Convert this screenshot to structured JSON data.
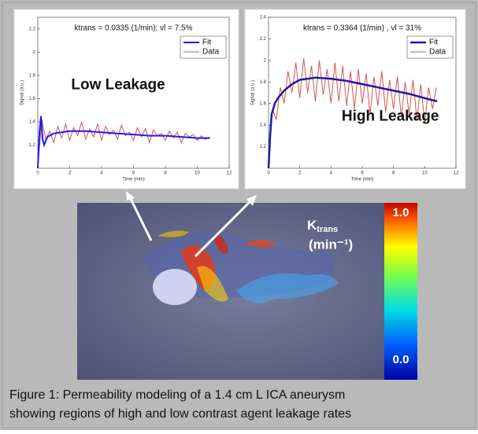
{
  "chart_data": [
    {
      "type": "line",
      "title": "ktrans = 0.0335 (1/min); vl = 7.5%",
      "annotation": "Low Leakage",
      "x_label": "Time (min)",
      "y_label": "Signal (a.u.)",
      "xlim": [
        0,
        12
      ],
      "xticks": [
        0,
        2,
        4,
        6,
        8,
        10,
        12
      ],
      "ylim": [
        1,
        2.3
      ],
      "yticks": [
        1.2,
        1.4,
        1.6,
        1.8,
        2,
        2.2
      ],
      "legend": "upper right",
      "series": [
        {
          "name": "Fit",
          "color": "#1a1aff",
          "width": 2,
          "x": [
            0,
            0.1,
            0.2,
            0.3,
            0.4,
            0.6,
            1,
            1.5,
            2,
            3,
            4,
            5,
            6,
            7,
            8,
            9,
            10,
            10.8
          ],
          "values": [
            1.0,
            1.3,
            1.45,
            1.25,
            1.2,
            1.27,
            1.3,
            1.31,
            1.32,
            1.32,
            1.31,
            1.3,
            1.29,
            1.28,
            1.28,
            1.27,
            1.26,
            1.26
          ]
        },
        {
          "name": "Data",
          "color": "#d9534f",
          "width": 1,
          "x": [
            0,
            0.25,
            0.5,
            0.75,
            1,
            1.25,
            1.5,
            1.75,
            2,
            2.25,
            2.5,
            2.75,
            3,
            3.25,
            3.5,
            3.75,
            4,
            4.25,
            4.5,
            4.75,
            5,
            5.25,
            5.5,
            5.75,
            6,
            6.25,
            6.5,
            6.75,
            7,
            7.25,
            7.5,
            7.75,
            8,
            8.25,
            8.5,
            8.75,
            9,
            9.25,
            9.5,
            9.75,
            10,
            10.25,
            10.5,
            10.75
          ],
          "values": [
            1.0,
            1.42,
            1.25,
            1.32,
            1.22,
            1.36,
            1.26,
            1.38,
            1.24,
            1.35,
            1.28,
            1.4,
            1.25,
            1.34,
            1.27,
            1.38,
            1.24,
            1.36,
            1.29,
            1.33,
            1.25,
            1.37,
            1.28,
            1.31,
            1.24,
            1.35,
            1.27,
            1.34,
            1.22,
            1.33,
            1.28,
            1.3,
            1.24,
            1.32,
            1.26,
            1.31,
            1.22,
            1.3,
            1.27,
            1.29,
            1.24,
            1.28,
            1.25,
            1.27
          ]
        }
      ]
    },
    {
      "type": "line",
      "title": "ktrans = 0.3364 (1/min) , vl = 31%",
      "annotation": "High Leakage",
      "x_label": "Time (min)",
      "y_label": "Signal (a.u.)",
      "xlim": [
        0,
        12
      ],
      "xticks": [
        0,
        2,
        4,
        6,
        8,
        10,
        12
      ],
      "ylim": [
        1,
        2.4
      ],
      "yticks": [
        1.2,
        1.4,
        1.6,
        1.8,
        2,
        2.2,
        2.4
      ],
      "legend": "upper right",
      "series": [
        {
          "name": "Fit",
          "color": "#1a1aa8",
          "width": 2.5,
          "x": [
            0,
            0.1,
            0.2,
            0.3,
            0.4,
            0.6,
            1,
            1.5,
            2,
            3,
            4,
            5,
            6,
            7,
            8,
            9,
            10,
            10.8
          ],
          "values": [
            1.0,
            1.3,
            1.5,
            1.55,
            1.6,
            1.65,
            1.72,
            1.78,
            1.82,
            1.84,
            1.83,
            1.81,
            1.78,
            1.75,
            1.72,
            1.69,
            1.65,
            1.62
          ]
        },
        {
          "name": "Data",
          "color": "#d9534f",
          "width": 1,
          "x": [
            0,
            0.25,
            0.5,
            0.75,
            1,
            1.25,
            1.5,
            1.75,
            2,
            2.25,
            2.5,
            2.75,
            3,
            3.25,
            3.5,
            3.75,
            4,
            4.25,
            4.5,
            4.75,
            5,
            5.25,
            5.5,
            5.75,
            6,
            6.25,
            6.5,
            6.75,
            7,
            7.25,
            7.5,
            7.75,
            8,
            8.25,
            8.5,
            8.75,
            9,
            9.25,
            9.5,
            9.75,
            10,
            10.25,
            10.5,
            10.75
          ],
          "values": [
            1.0,
            1.55,
            1.45,
            1.75,
            1.6,
            1.9,
            1.7,
            1.98,
            1.65,
            2.02,
            1.7,
            1.95,
            1.62,
            2.0,
            1.68,
            1.92,
            1.6,
            1.98,
            1.62,
            1.95,
            1.58,
            1.9,
            1.55,
            1.92,
            1.6,
            1.88,
            1.5,
            1.85,
            1.58,
            1.9,
            1.52,
            1.82,
            1.55,
            1.85,
            1.48,
            1.8,
            1.5,
            1.82,
            1.45,
            1.78,
            1.42,
            1.75,
            1.55,
            1.75
          ]
        }
      ]
    }
  ],
  "image": {
    "k_label": "K",
    "k_sub": "trans",
    "unit": "(min⁻¹)",
    "scale_max": "1.0",
    "scale_min": "0.0"
  },
  "caption": [
    "Figure 1: Permeability modeling of a 1.4 cm L ICA aneurysm",
    "showing regions of high and low contrast agent leakage rates"
  ]
}
